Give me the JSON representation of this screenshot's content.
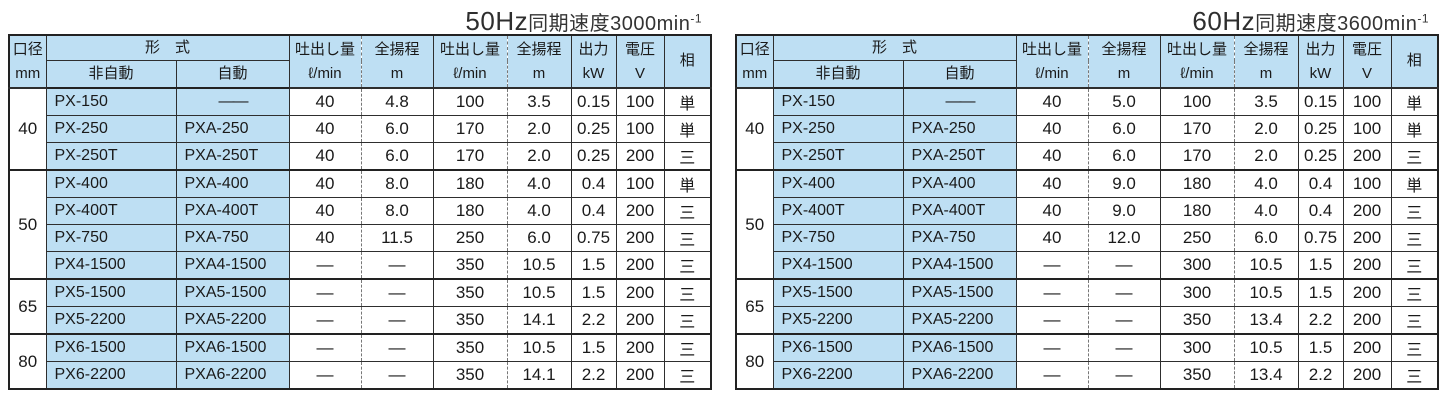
{
  "colors": {
    "header_bg": "#bedff3",
    "border": "#2e2e2e",
    "text": "#1a1a1a"
  },
  "header": {
    "diameter": [
      "口径",
      "mm"
    ],
    "model_group": "形　式",
    "model_sub": [
      "非自動",
      "自動"
    ],
    "pair_cols": [
      [
        "吐出し量",
        "ℓ/min"
      ],
      [
        "全揚程",
        "m"
      ],
      [
        "吐出し量",
        "ℓ/min"
      ],
      [
        "全揚程",
        "m"
      ],
      [
        "出力",
        "kW"
      ],
      [
        "電圧",
        "V"
      ]
    ],
    "phase": "相"
  },
  "tables": [
    {
      "id": "50hz",
      "title": {
        "freq": "50Hz",
        "middle": "同期速度3000min",
        "sup": "-1"
      },
      "groups": [
        {
          "diameter": "40",
          "rows": [
            [
              "PX-150",
              "——",
              "40",
              "4.8",
              "100",
              "3.5",
              "0.15",
              "100",
              "単"
            ],
            [
              "PX-250",
              "PXA-250",
              "40",
              "6.0",
              "170",
              "2.0",
              "0.25",
              "100",
              "単"
            ],
            [
              "PX-250T",
              "PXA-250T",
              "40",
              "6.0",
              "170",
              "2.0",
              "0.25",
              "200",
              "三"
            ]
          ]
        },
        {
          "diameter": "50",
          "rows": [
            [
              "PX-400",
              "PXA-400",
              "40",
              "8.0",
              "180",
              "4.0",
              "0.4",
              "100",
              "単"
            ],
            [
              "PX-400T",
              "PXA-400T",
              "40",
              "8.0",
              "180",
              "4.0",
              "0.4",
              "200",
              "三"
            ],
            [
              "PX-750",
              "PXA-750",
              "40",
              "11.5",
              "250",
              "6.0",
              "0.75",
              "200",
              "三"
            ],
            [
              "PX4-1500",
              "PXA4-1500",
              "—",
              "—",
              "350",
              "10.5",
              "1.5",
              "200",
              "三"
            ]
          ]
        },
        {
          "diameter": "65",
          "rows": [
            [
              "PX5-1500",
              "PXA5-1500",
              "—",
              "—",
              "350",
              "10.5",
              "1.5",
              "200",
              "三"
            ],
            [
              "PX5-2200",
              "PXA5-2200",
              "—",
              "—",
              "350",
              "14.1",
              "2.2",
              "200",
              "三"
            ]
          ]
        },
        {
          "diameter": "80",
          "rows": [
            [
              "PX6-1500",
              "PXA6-1500",
              "—",
              "—",
              "350",
              "10.5",
              "1.5",
              "200",
              "三"
            ],
            [
              "PX6-2200",
              "PXA6-2200",
              "—",
              "—",
              "350",
              "14.1",
              "2.2",
              "200",
              "三"
            ]
          ]
        }
      ]
    },
    {
      "id": "60hz",
      "title": {
        "freq": "60Hz",
        "middle": "同期速度3600min",
        "sup": "-1"
      },
      "groups": [
        {
          "diameter": "40",
          "rows": [
            [
              "PX-150",
              "——",
              "40",
              "5.0",
              "100",
              "3.5",
              "0.15",
              "100",
              "単"
            ],
            [
              "PX-250",
              "PXA-250",
              "40",
              "6.0",
              "170",
              "2.0",
              "0.25",
              "100",
              "単"
            ],
            [
              "PX-250T",
              "PXA-250T",
              "40",
              "6.0",
              "170",
              "2.0",
              "0.25",
              "200",
              "三"
            ]
          ]
        },
        {
          "diameter": "50",
          "rows": [
            [
              "PX-400",
              "PXA-400",
              "40",
              "9.0",
              "180",
              "4.0",
              "0.4",
              "100",
              "単"
            ],
            [
              "PX-400T",
              "PXA-400T",
              "40",
              "9.0",
              "180",
              "4.0",
              "0.4",
              "200",
              "三"
            ],
            [
              "PX-750",
              "PXA-750",
              "40",
              "12.0",
              "250",
              "6.0",
              "0.75",
              "200",
              "三"
            ],
            [
              "PX4-1500",
              "PXA4-1500",
              "—",
              "—",
              "300",
              "10.5",
              "1.5",
              "200",
              "三"
            ]
          ]
        },
        {
          "diameter": "65",
          "rows": [
            [
              "PX5-1500",
              "PXA5-1500",
              "—",
              "—",
              "300",
              "10.5",
              "1.5",
              "200",
              "三"
            ],
            [
              "PX5-2200",
              "PXA5-2200",
              "—",
              "—",
              "350",
              "13.4",
              "2.2",
              "200",
              "三"
            ]
          ]
        },
        {
          "diameter": "80",
          "rows": [
            [
              "PX6-1500",
              "PXA6-1500",
              "—",
              "—",
              "300",
              "10.5",
              "1.5",
              "200",
              "三"
            ],
            [
              "PX6-2200",
              "PXA6-2200",
              "—",
              "—",
              "350",
              "13.4",
              "2.2",
              "200",
              "三"
            ]
          ]
        }
      ]
    }
  ]
}
